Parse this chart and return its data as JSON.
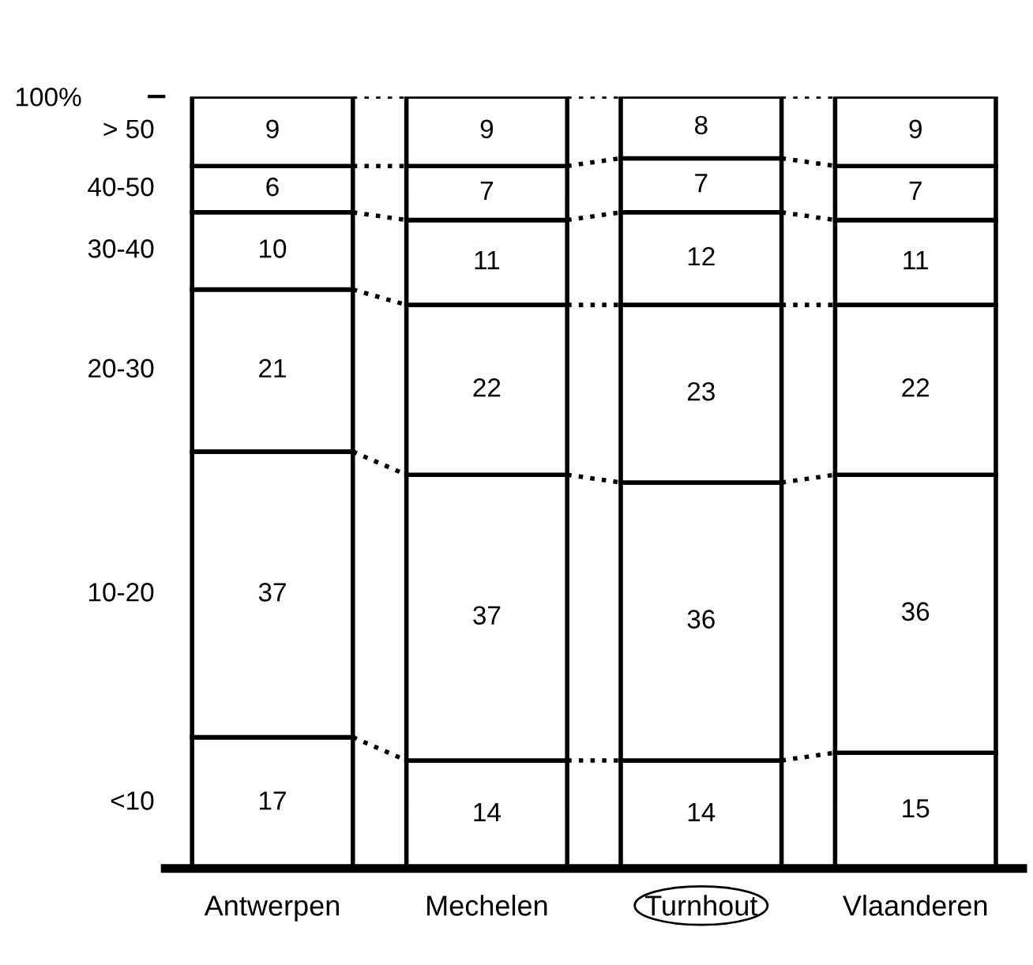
{
  "chart_data": {
    "type": "bar",
    "stacked": true,
    "categories": [
      "Antwerpen",
      "Mechelen",
      "Turnhout",
      "Vlaanderen"
    ],
    "series": [
      {
        "name": "<10",
        "color": "#ffffff",
        "values": [
          17,
          14,
          14,
          15
        ]
      },
      {
        "name": "10-20",
        "color": "#ffffff",
        "values": [
          37,
          37,
          36,
          36
        ]
      },
      {
        "name": "20-30",
        "color": "#ffffff",
        "values": [
          21,
          22,
          23,
          22
        ]
      },
      {
        "name": "30-40",
        "color": "#ffffff",
        "values": [
          10,
          11,
          12,
          11
        ]
      },
      {
        "name": "40-50",
        "color": "#ffffff",
        "values": [
          6,
          7,
          7,
          7
        ]
      },
      {
        "name": "> 50",
        "color": "#ffffff",
        "values": [
          9,
          9,
          8,
          9
        ]
      }
    ],
    "ylim": [
      0,
      100
    ],
    "yticks": [
      {
        "value": 100,
        "label": "100%"
      }
    ],
    "data_labels": true,
    "grid": false,
    "legend": "left",
    "line_style": "dotted"
  }
}
